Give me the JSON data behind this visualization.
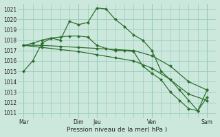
{
  "background_color": "#cce8dd",
  "grid_color": "#99ccbb",
  "line_color": "#2d6e2d",
  "marker_color": "#2d6e2d",
  "xlabel_text": "Pression niveau de la mer( hPa )",
  "ylim": [
    1010.5,
    1021.5
  ],
  "yticks": [
    1011,
    1012,
    1013,
    1014,
    1015,
    1016,
    1017,
    1018,
    1019,
    1020,
    1021
  ],
  "major_xtick_positions": [
    0,
    3,
    4,
    7,
    10
  ],
  "major_xtick_labels": [
    "Mar",
    "Dim",
    "Jeu",
    "Ven",
    "Sam"
  ],
  "lines": [
    {
      "x": [
        0,
        0.5,
        1,
        1.5,
        2,
        2.5,
        3,
        3.5,
        4,
        4.5,
        5,
        5.5,
        6,
        6.5,
        7,
        7.5,
        8,
        8.5,
        9,
        9.5,
        10
      ],
      "y": [
        1015.0,
        1016.0,
        1017.7,
        1018.2,
        1018.0,
        1019.8,
        1019.5,
        1019.7,
        1021.1,
        1021.0,
        1020.0,
        1019.3,
        1018.5,
        1018.0,
        1017.0,
        1015.0,
        1014.2,
        1013.2,
        1012.2,
        1011.2,
        1013.2
      ]
    },
    {
      "x": [
        0,
        0.5,
        1,
        1.5,
        2,
        2.5,
        3,
        3.5,
        4,
        4.5,
        5,
        5.5,
        6,
        6.5,
        7,
        7.5,
        8,
        8.5,
        9,
        9.5,
        10
      ],
      "y": [
        1017.5,
        1017.7,
        1018.0,
        1018.2,
        1018.3,
        1018.4,
        1018.4,
        1018.3,
        1017.5,
        1017.2,
        1017.0,
        1017.0,
        1016.9,
        1015.5,
        1014.8,
        1014.2,
        1013.0,
        1012.2,
        1011.4,
        1011.2,
        1012.5
      ]
    },
    {
      "x": [
        0,
        1,
        2,
        3,
        4,
        5,
        6,
        7,
        8,
        9,
        10
      ],
      "y": [
        1017.5,
        1017.5,
        1017.4,
        1017.3,
        1017.2,
        1017.1,
        1017.0,
        1016.5,
        1015.5,
        1014.0,
        1013.2
      ]
    },
    {
      "x": [
        0,
        1,
        2,
        3,
        4,
        5,
        6,
        7,
        8,
        9,
        10
      ],
      "y": [
        1017.5,
        1017.3,
        1017.1,
        1016.9,
        1016.6,
        1016.3,
        1016.0,
        1015.3,
        1014.2,
        1012.8,
        1012.2
      ]
    }
  ]
}
